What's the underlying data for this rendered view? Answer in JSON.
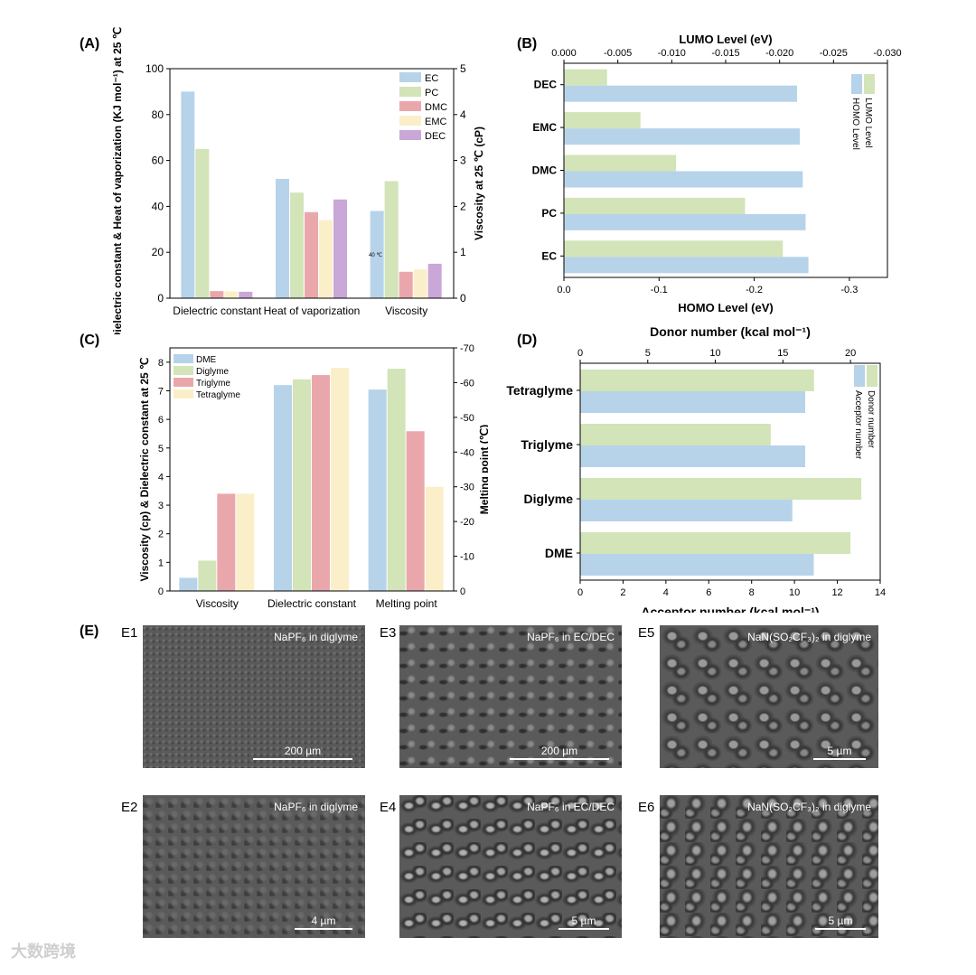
{
  "panels": {
    "A": "(A)",
    "B": "(B)",
    "C": "(C)",
    "D": "(D)",
    "E": "(E)"
  },
  "colors": {
    "blue": "#b7d3ea",
    "green": "#d2e4b8",
    "red": "#eaa7ab",
    "yellow": "#fbefc9",
    "purple": "#c9a7d6"
  },
  "chart_data": [
    {
      "type": "bar",
      "panel": "A",
      "categories": [
        "Dielectric constant",
        "Heat of vaporization",
        "Viscosity"
      ],
      "series": [
        {
          "name": "EC",
          "values": [
            90,
            52,
            38
          ]
        },
        {
          "name": "PC",
          "values": [
            65,
            46,
            51
          ]
        },
        {
          "name": "DMC",
          "values": [
            3.1,
            37.5,
            11.5
          ]
        },
        {
          "name": "EMC",
          "values": [
            3.0,
            34,
            12.5
          ]
        },
        {
          "name": "DEC",
          "values": [
            2.8,
            43,
            15
          ]
        }
      ],
      "ylabel": "Dielectric constant & Heat of vaporization (KJ mol⁻¹) at 25 ℃",
      "y2label": "Viscosity at 25 ℃ (cP)",
      "ylim": [
        0,
        100
      ],
      "y2lim": [
        0,
        5
      ],
      "yticks": [
        "0",
        "20",
        "40",
        "60",
        "80",
        "100"
      ],
      "y2ticks": [
        "0",
        "1",
        "2",
        "3",
        "4",
        "5"
      ],
      "annotation": "40 ℃",
      "legend": "top-right"
    },
    {
      "type": "bar",
      "panel": "B",
      "orientation": "horizontal",
      "categories": [
        "EC",
        "PC",
        "DMC",
        "EMC",
        "DEC"
      ],
      "series": [
        {
          "name": "HOMO Level",
          "values": [
            -0.257,
            -0.254,
            -0.251,
            -0.248,
            -0.245
          ]
        },
        {
          "name": "LUMO Level",
          "values": [
            -0.0203,
            -0.0168,
            -0.0104,
            -0.0071,
            -0.004
          ]
        }
      ],
      "xlabel": "HOMO Level (eV)",
      "x2label": "LUMO Level (eV)",
      "xlim": [
        0,
        -0.34
      ],
      "x2lim": [
        0,
        -0.03
      ],
      "xticks": [
        "0.0",
        "-0.1",
        "-0.2",
        "-0.3"
      ],
      "x2ticks": [
        "0.000",
        "-0.005",
        "-0.010",
        "-0.015",
        "-0.020",
        "-0.025",
        "-0.030"
      ],
      "legend": "top-right"
    },
    {
      "type": "bar",
      "panel": "C",
      "categories": [
        "Viscosity",
        "Dielectric constant",
        "Melting point"
      ],
      "series": [
        {
          "name": "DME",
          "values": [
            0.46,
            7.2,
            -58
          ]
        },
        {
          "name": "Diglyme",
          "values": [
            1.06,
            7.4,
            -64
          ]
        },
        {
          "name": "Triglyme",
          "values": [
            3.4,
            7.55,
            -46
          ]
        },
        {
          "name": "Tetraglyme",
          "values": [
            3.4,
            7.8,
            -30
          ]
        }
      ],
      "ylabel": "Viscosity (cp) & Dielectric constant at 25 ℃",
      "y2label": "Melting point (℃)",
      "ylim": [
        0,
        8.5
      ],
      "y2lim": [
        0,
        -70
      ],
      "yticks": [
        "0",
        "1",
        "2",
        "3",
        "4",
        "5",
        "6",
        "7",
        "8"
      ],
      "y2ticks": [
        "0",
        "-10",
        "-20",
        "-30",
        "-40",
        "-50",
        "-60",
        "-70"
      ],
      "legend": "top-left"
    },
    {
      "type": "bar",
      "panel": "D",
      "orientation": "horizontal",
      "categories": [
        "DME",
        "Diglyme",
        "Triglyme",
        "Tetraglyme"
      ],
      "series": [
        {
          "name": "Acceptor number",
          "values": [
            10.9,
            9.9,
            10.5,
            10.5
          ]
        },
        {
          "name": "Donor number",
          "values": [
            20,
            20.8,
            14.1,
            17.3
          ]
        }
      ],
      "xlabel": "Acceptor number (kcal mol⁻¹)",
      "x2label": "Donor number (kcal mol⁻¹)",
      "xlim": [
        0,
        14
      ],
      "x2lim": [
        0,
        22.2
      ],
      "xticks": [
        "0",
        "2",
        "4",
        "6",
        "8",
        "10",
        "12",
        "14"
      ],
      "x2ticks": [
        "0",
        "5",
        "10",
        "15",
        "20"
      ],
      "legend": "top-right"
    }
  ],
  "sem_images": [
    {
      "label": "E1",
      "title": "NaPF₆ in diglyme",
      "scale": "200 µm"
    },
    {
      "label": "E3",
      "title": "NaPF₆ in EC/DEC",
      "scale": "200 µm"
    },
    {
      "label": "E5",
      "title": "NaN(SO₂CF₃)₂ in diglyme",
      "scale": "5 µm"
    },
    {
      "label": "E2",
      "title": "NaPF₆ in diglyme",
      "scale": "4 µm"
    },
    {
      "label": "E4",
      "title": "NaPF₆ in EC/DEC",
      "scale": "5 µm"
    },
    {
      "label": "E6",
      "title": "NaN(SO₂CF₃)₂ in diglyme",
      "scale": "5 µm"
    }
  ],
  "watermark": "大数跨境"
}
